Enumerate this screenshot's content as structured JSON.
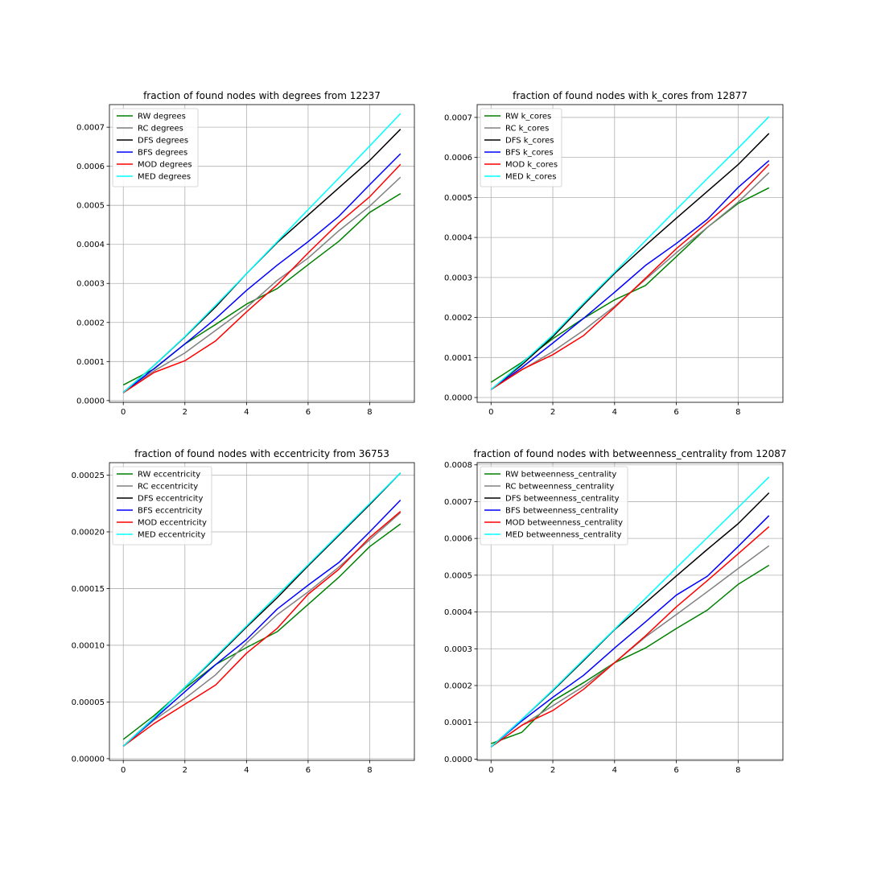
{
  "figure": {
    "charts": [
      {
        "type": "line",
        "title": "fraction of found nodes with degrees from 12237",
        "x": [
          0,
          1,
          2,
          3,
          4,
          5,
          6,
          7,
          8,
          9
        ],
        "xlim": [
          -0.45,
          9.45
        ],
        "ylim": [
          -4.5e-06,
          0.000758
        ],
        "xticks": [
          0,
          2,
          4,
          6,
          8
        ],
        "xtick_labels": [
          "0",
          "2",
          "4",
          "6",
          "8"
        ],
        "yticks": [
          0,
          0.0001,
          0.0002,
          0.0003,
          0.0004,
          0.0005,
          0.0006,
          0.0007
        ],
        "ytick_labels": [
          "0.0000",
          "0.0001",
          "0.0002",
          "0.0003",
          "0.0004",
          "0.0005",
          "0.0006",
          "0.0007"
        ],
        "grid": true,
        "legend_position": "upper-left",
        "series": [
          {
            "name": "RW degrees",
            "color": "#008000",
            "values": [
              4e-05,
              8.1e-05,
              0.000145,
              0.000195,
              0.000247,
              0.000287,
              0.000348,
              0.000408,
              0.000482,
              0.00053
            ]
          },
          {
            "name": "RC degrees",
            "color": "#808080",
            "values": [
              2.2e-05,
              7.6e-05,
              0.000122,
              0.00018,
              0.000238,
              0.000308,
              0.000365,
              0.000435,
              0.000498,
              0.000572
            ]
          },
          {
            "name": "DFS degrees",
            "color": "#000000",
            "values": [
              2.1e-05,
              9e-05,
              0.000163,
              0.00024,
              0.000325,
              0.000405,
              0.000475,
              0.000545,
              0.000615,
              0.000695
            ]
          },
          {
            "name": "BFS degrees",
            "color": "#0000ff",
            "values": [
              2e-05,
              8.2e-05,
              0.000145,
              0.00021,
              0.000282,
              0.000347,
              0.000407,
              0.000472,
              0.000553,
              0.000632
            ]
          },
          {
            "name": "MOD degrees",
            "color": "#ff0000",
            "values": [
              2e-05,
              7.2e-05,
              0.000102,
              0.000153,
              0.000227,
              0.000297,
              0.000378,
              0.000455,
              0.000522,
              0.000605
            ]
          },
          {
            "name": "MED degrees",
            "color": "#00ffff",
            "values": [
              2.1e-05,
              9e-05,
              0.000164,
              0.000244,
              0.000325,
              0.000407,
              0.000489,
              0.00057,
              0.000652,
              0.000735
            ]
          }
        ]
      },
      {
        "type": "line",
        "title": "fraction of found nodes with k_cores from 12877",
        "x": [
          0,
          1,
          2,
          3,
          4,
          5,
          6,
          7,
          8,
          9
        ],
        "xlim": [
          -0.45,
          9.45
        ],
        "ylim": [
          -1.2e-05,
          0.000732
        ],
        "xticks": [
          0,
          2,
          4,
          6,
          8
        ],
        "xtick_labels": [
          "0",
          "2",
          "4",
          "6",
          "8"
        ],
        "yticks": [
          0,
          0.0001,
          0.0002,
          0.0003,
          0.0004,
          0.0005,
          0.0006,
          0.0007
        ],
        "ytick_labels": [
          "0.0000",
          "0.0001",
          "0.0002",
          "0.0003",
          "0.0004",
          "0.0005",
          "0.0006",
          "0.0007"
        ],
        "grid": true,
        "legend_position": "upper-left",
        "series": [
          {
            "name": "RW k_cores",
            "color": "#008000",
            "values": [
              3.8e-05,
              8.8e-05,
              0.000147,
              0.000198,
              0.000244,
              0.00028,
              0.000352,
              0.000425,
              0.000485,
              0.000524
            ]
          },
          {
            "name": "RC k_cores",
            "color": "#808080",
            "values": [
              2e-05,
              6.9e-05,
              0.000115,
              0.000168,
              0.000228,
              0.000295,
              0.000362,
              0.000425,
              0.000488,
              0.000562
            ]
          },
          {
            "name": "DFS k_cores",
            "color": "#000000",
            "values": [
              2e-05,
              8.2e-05,
              0.000152,
              0.000232,
              0.00031,
              0.00038,
              0.000448,
              0.000515,
              0.000582,
              0.00066
            ]
          },
          {
            "name": "BFS k_cores",
            "color": "#0000ff",
            "values": [
              2e-05,
              7.5e-05,
              0.000136,
              0.000198,
              0.000263,
              0.00033,
              0.000385,
              0.000445,
              0.000525,
              0.000592
            ]
          },
          {
            "name": "MOD k_cores",
            "color": "#ff0000",
            "values": [
              2e-05,
              7e-05,
              0.000107,
              0.000155,
              0.000225,
              0.000298,
              0.000372,
              0.000437,
              0.000503,
              0.000583
            ]
          },
          {
            "name": "MED k_cores",
            "color": "#00ffff",
            "values": [
              2e-05,
              8.6e-05,
              0.000156,
              0.000236,
              0.000313,
              0.000392,
              0.00047,
              0.000547,
              0.000623,
              0.000702
            ]
          }
        ]
      },
      {
        "type": "line",
        "title": "fraction of found nodes with eccentricity from 36753",
        "x": [
          0,
          1,
          2,
          3,
          4,
          5,
          6,
          7,
          8,
          9
        ],
        "xlim": [
          -0.45,
          9.45
        ],
        "ylim": [
          -1.5e-06,
          0.000261
        ],
        "xticks": [
          0,
          2,
          4,
          6,
          8
        ],
        "xtick_labels": [
          "0",
          "2",
          "4",
          "6",
          "8"
        ],
        "yticks": [
          0,
          5e-05,
          0.0001,
          0.00015,
          0.0002,
          0.00025
        ],
        "ytick_labels": [
          "0.00000",
          "0.00005",
          "0.00010",
          "0.00015",
          "0.00020",
          "0.00025"
        ],
        "grid": true,
        "legend_position": "upper-left",
        "series": [
          {
            "name": "RW eccentricity",
            "color": "#008000",
            "values": [
              1.7e-05,
              3.8e-05,
              6.2e-05,
              8.3e-05,
              9.8e-05,
              0.000112,
              0.000136,
              0.00016,
              0.000187,
              0.000207
            ]
          },
          {
            "name": "RC eccentricity",
            "color": "#808080",
            "values": [
              1.1e-05,
              3.4e-05,
              5.3e-05,
              7.4e-05,
              0.000102,
              0.000127,
              0.000147,
              0.000169,
              0.000193,
              0.000217
            ]
          },
          {
            "name": "DFS eccentricity",
            "color": "#000000",
            "values": [
              1.1e-05,
              3.6e-05,
              6.3e-05,
              8.9e-05,
              0.000116,
              0.000142,
              0.00017,
              0.000197,
              0.000224,
              0.000252
            ]
          },
          {
            "name": "BFS eccentricity",
            "color": "#0000ff",
            "values": [
              1.1e-05,
              3.5e-05,
              5.9e-05,
              8.3e-05,
              0.000105,
              0.000132,
              0.000153,
              0.000173,
              0.0002,
              0.000228
            ]
          },
          {
            "name": "MOD eccentricity",
            "color": "#ff0000",
            "values": [
              1.1e-05,
              3.1e-05,
              4.8e-05,
              6.5e-05,
              9.3e-05,
              0.000115,
              0.000145,
              0.000167,
              0.000195,
              0.000218
            ]
          },
          {
            "name": "MED eccentricity",
            "color": "#00ffff",
            "values": [
              1.1e-05,
              3.6e-05,
              6.3e-05,
              9e-05,
              0.000117,
              0.000144,
              0.000171,
              0.000198,
              0.000225,
              0.000252
            ]
          }
        ]
      },
      {
        "type": "line",
        "title": "fraction of found nodes with betweenness_centrality from 12087",
        "x": [
          0,
          1,
          2,
          3,
          4,
          5,
          6,
          7,
          8,
          9
        ],
        "xlim": [
          -0.45,
          9.45
        ],
        "ylim": [
          -3.5e-06,
          0.000806
        ],
        "xticks": [
          0,
          2,
          4,
          6,
          8
        ],
        "xtick_labels": [
          "0",
          "2",
          "4",
          "6",
          "8"
        ],
        "yticks": [
          0,
          0.0001,
          0.0002,
          0.0003,
          0.0004,
          0.0005,
          0.0006,
          0.0007,
          0.0008
        ],
        "ytick_labels": [
          "0.0000",
          "0.0001",
          "0.0002",
          "0.0003",
          "0.0004",
          "0.0005",
          "0.0006",
          "0.0007",
          "0.0008"
        ],
        "grid": true,
        "legend_position": "upper-left",
        "series": [
          {
            "name": "RW betweenness_centrality",
            "color": "#008000",
            "values": [
              4.2e-05,
              7.3e-05,
              0.000158,
              0.000208,
              0.000262,
              0.000302,
              0.000355,
              0.000405,
              0.000475,
              0.000527
            ]
          },
          {
            "name": "RC betweenness_centrality",
            "color": "#808080",
            "values": [
              3.3e-05,
              9.2e-05,
              0.000145,
              0.000198,
              0.000262,
              0.000332,
              0.000393,
              0.000455,
              0.000518,
              0.00058
            ]
          },
          {
            "name": "DFS betweenness_centrality",
            "color": "#000000",
            "values": [
              3.3e-05,
              0.000108,
              0.000186,
              0.000268,
              0.000352,
              0.000425,
              0.000498,
              0.00057,
              0.00064,
              0.000724
            ]
          },
          {
            "name": "BFS betweenness_centrality",
            "color": "#0000ff",
            "values": [
              3.3e-05,
              0.000104,
              0.000168,
              0.000228,
              0.000302,
              0.000373,
              0.000446,
              0.000497,
              0.000578,
              0.000662
            ]
          },
          {
            "name": "MOD betweenness_centrality",
            "color": "#ff0000",
            "values": [
              3.3e-05,
              9.2e-05,
              0.000132,
              0.00019,
              0.000262,
              0.000335,
              0.000414,
              0.000485,
              0.000558,
              0.000632
            ]
          },
          {
            "name": "MED betweenness_centrality",
            "color": "#00ffff",
            "values": [
              3.3e-05,
              0.000108,
              0.000188,
              0.000271,
              0.000353,
              0.000437,
              0.00052,
              0.000602,
              0.000684,
              0.000767
            ]
          }
        ]
      }
    ]
  }
}
